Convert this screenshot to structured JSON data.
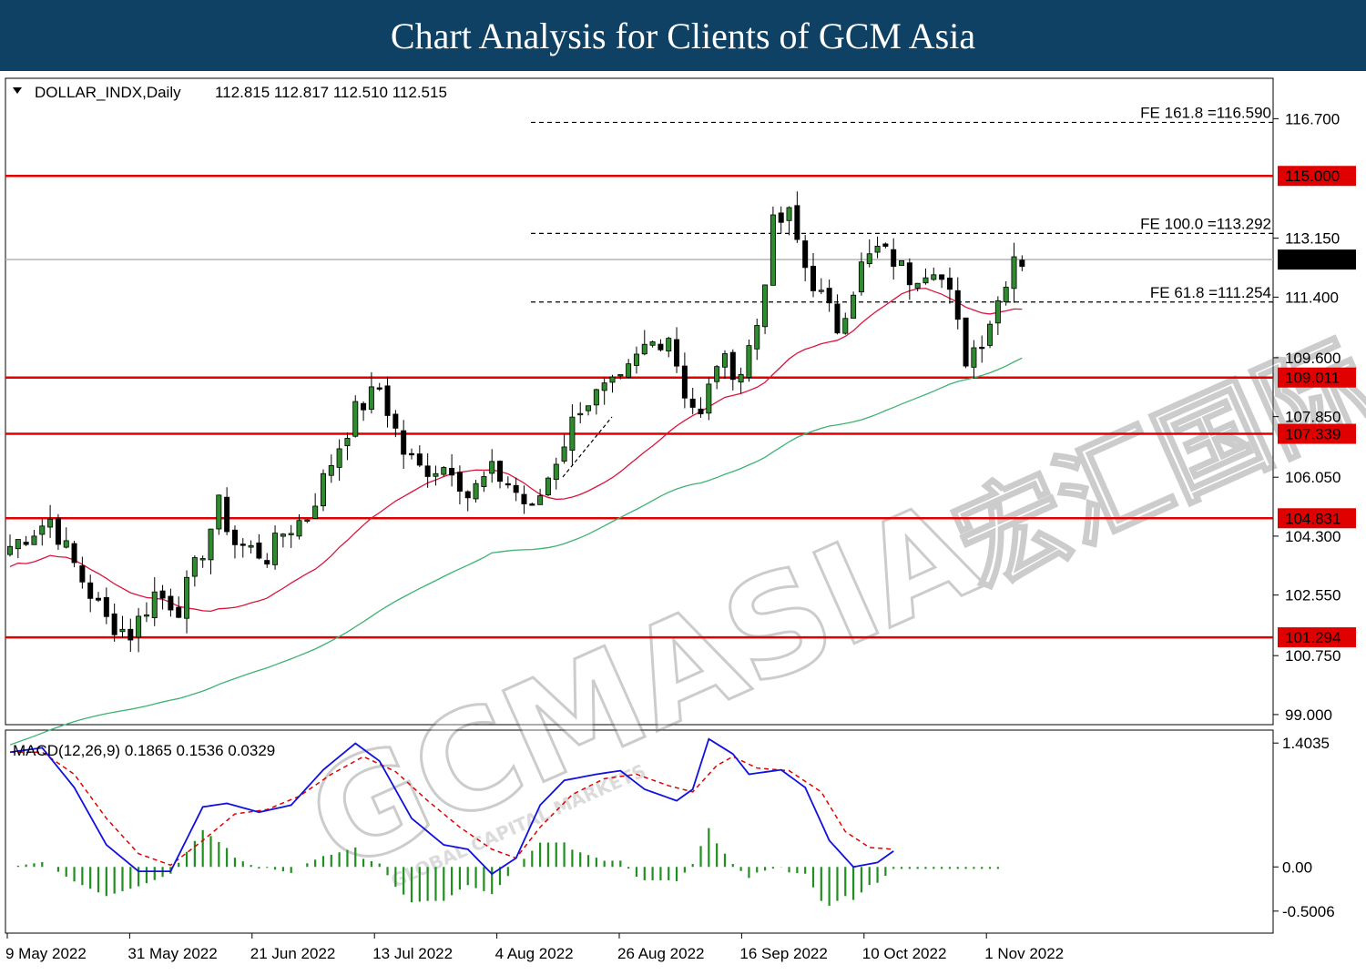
{
  "header": {
    "title": "Chart Analysis for Clients of GCM Asia"
  },
  "watermark": {
    "brand": "GCMASIA",
    "sub": "GLOBAL CAPITAL MARKETS",
    "cn": "宏汇国际"
  },
  "chart_data": {
    "type": "candlestick",
    "symbol_label": "DOLLAR_INDX,Daily",
    "ohlc_label": "112.815 112.817 112.510 112.515",
    "ylim": [
      98.7,
      117.9
    ],
    "price_ticks": [
      "116.700",
      "113.150",
      "111.400",
      "109.600",
      "107.850",
      "106.050",
      "104.300",
      "102.550",
      "100.750",
      "99.000"
    ],
    "x_ticks": [
      "9 May 2022",
      "31 May 2022",
      "21 Jun 2022",
      "13 Jul 2022",
      "4 Aug 2022",
      "26 Aug 2022",
      "16 Sep 2022",
      "10 Oct 2022",
      "1 Nov 2022"
    ],
    "current_price": "112.515",
    "colors": {
      "up": "#2e8b2e",
      "down": "#000000",
      "level": "#e00000",
      "ma_fast": "#dc143c",
      "ma_slow": "#3cb371",
      "macd": "#1010e0",
      "signal": "#e00000",
      "hist": "#1f8f1f"
    },
    "levels": [
      {
        "label": "115.000",
        "value": 115.0
      },
      {
        "label": "109.011",
        "value": 109.011
      },
      {
        "label": "107.339",
        "value": 107.339
      },
      {
        "label": "104.831",
        "value": 104.831
      },
      {
        "label": "101.294",
        "value": 101.294
      }
    ],
    "fibonacci": [
      {
        "label": "FE 161.8 =116.590",
        "value": 116.59
      },
      {
        "label": "FE 100.0 =113.292",
        "value": 113.292
      },
      {
        "label": "FE 61.8 =111.254",
        "value": 111.254
      }
    ],
    "price_path": [
      [
        0,
        104.0
      ],
      [
        5,
        104.8
      ],
      [
        9,
        103.0
      ],
      [
        12,
        101.8
      ],
      [
        15,
        101.4
      ],
      [
        18,
        102.6
      ],
      [
        21,
        102.2
      ],
      [
        24,
        103.9
      ],
      [
        26,
        105.2
      ],
      [
        28,
        104.1
      ],
      [
        32,
        103.7
      ],
      [
        34,
        104.4
      ],
      [
        37,
        104.9
      ],
      [
        40,
        106.5
      ],
      [
        43,
        108.0
      ],
      [
        46,
        108.7
      ],
      [
        49,
        106.8
      ],
      [
        51,
        106.3
      ],
      [
        55,
        106.4
      ],
      [
        57,
        105.5
      ],
      [
        60,
        106.2
      ],
      [
        62,
        105.9
      ],
      [
        65,
        105.0
      ],
      [
        68,
        106.6
      ],
      [
        71,
        108.2
      ],
      [
        74,
        108.6
      ],
      [
        76,
        108.8
      ],
      [
        79,
        109.9
      ],
      [
        82,
        110.3
      ],
      [
        84,
        108.6
      ],
      [
        86,
        107.8
      ],
      [
        88,
        109.5
      ],
      [
        91,
        109.2
      ],
      [
        93,
        110.6
      ],
      [
        95,
        113.5
      ],
      [
        97,
        113.8
      ],
      [
        99,
        112.3
      ],
      [
        101,
        111.4
      ],
      [
        103,
        110.5
      ],
      [
        106,
        112.3
      ],
      [
        108,
        112.8
      ],
      [
        110,
        112.5
      ],
      [
        112,
        112.0
      ],
      [
        115,
        112.4
      ],
      [
        117,
        111.4
      ],
      [
        119,
        109.6
      ],
      [
        121,
        110.2
      ],
      [
        123,
        111.3
      ],
      [
        125,
        112.7
      ],
      [
        126,
        112.5
      ]
    ],
    "macd": {
      "label": "MACD(12,26,9) 0.1865 0.1536 0.0329",
      "ylim": [
        -0.75,
        1.55
      ],
      "ticks": [
        "1.4035",
        "0.00",
        "-0.5006"
      ],
      "macd_path": [
        [
          0,
          1.3
        ],
        [
          4,
          1.35
        ],
        [
          8,
          0.9
        ],
        [
          12,
          0.25
        ],
        [
          16,
          -0.05
        ],
        [
          20,
          -0.05
        ],
        [
          24,
          0.68
        ],
        [
          27,
          0.72
        ],
        [
          31,
          0.62
        ],
        [
          35,
          0.7
        ],
        [
          39,
          1.1
        ],
        [
          43,
          1.4
        ],
        [
          46,
          1.2
        ],
        [
          50,
          0.55
        ],
        [
          54,
          0.25
        ],
        [
          57,
          0.2
        ],
        [
          60,
          -0.08
        ],
        [
          63,
          0.1
        ],
        [
          66,
          0.7
        ],
        [
          69,
          0.98
        ],
        [
          73,
          1.05
        ],
        [
          76,
          1.09
        ],
        [
          79,
          0.88
        ],
        [
          83,
          0.75
        ],
        [
          85,
          0.88
        ],
        [
          87,
          1.45
        ],
        [
          90,
          1.28
        ],
        [
          92,
          1.05
        ],
        [
          96,
          1.1
        ],
        [
          99,
          0.9
        ],
        [
          102,
          0.3
        ],
        [
          105,
          0.0
        ],
        [
          108,
          0.05
        ],
        [
          110,
          0.18
        ]
      ],
      "signal_path": [
        [
          0,
          1.3
        ],
        [
          4,
          1.3
        ],
        [
          8,
          1.05
        ],
        [
          12,
          0.55
        ],
        [
          16,
          0.15
        ],
        [
          20,
          0.02
        ],
        [
          24,
          0.3
        ],
        [
          28,
          0.6
        ],
        [
          32,
          0.65
        ],
        [
          36,
          0.8
        ],
        [
          40,
          1.05
        ],
        [
          44,
          1.25
        ],
        [
          48,
          1.08
        ],
        [
          52,
          0.75
        ],
        [
          56,
          0.45
        ],
        [
          60,
          0.2
        ],
        [
          63,
          0.1
        ],
        [
          66,
          0.45
        ],
        [
          70,
          0.82
        ],
        [
          74,
          1.0
        ],
        [
          78,
          1.05
        ],
        [
          82,
          0.92
        ],
        [
          85,
          0.85
        ],
        [
          88,
          1.15
        ],
        [
          90,
          1.25
        ],
        [
          93,
          1.12
        ],
        [
          97,
          1.09
        ],
        [
          101,
          0.85
        ],
        [
          104,
          0.4
        ],
        [
          107,
          0.22
        ],
        [
          110,
          0.2
        ]
      ]
    }
  }
}
